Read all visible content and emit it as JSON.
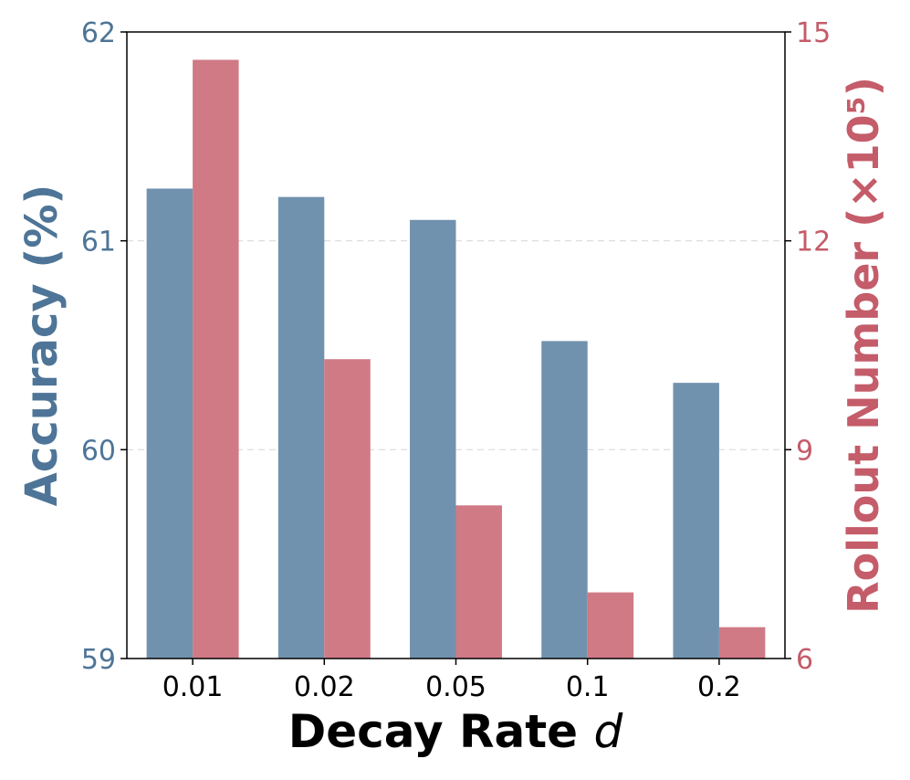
{
  "chart_data": {
    "type": "bar",
    "categories": [
      "0.01",
      "0.02",
      "0.05",
      "0.1",
      "0.2"
    ],
    "xlabel": "Decay Rate",
    "xlabel_var": "d",
    "ylabel_left": "Accuracy (%)",
    "ylabel_right": "Rollout Number (×10⁵)",
    "ylim_left": [
      59,
      62
    ],
    "yticks_left": [
      59,
      60,
      61,
      62
    ],
    "ylim_right": [
      6,
      15
    ],
    "yticks_right": [
      6,
      9,
      12,
      15
    ],
    "grid": "horizontal dashed",
    "series": [
      {
        "axis": "left",
        "values": [
          61.25,
          61.21,
          61.1,
          60.52,
          60.32
        ],
        "color": "#7092ae"
      },
      {
        "axis": "right",
        "values": [
          14.6,
          10.3,
          8.2,
          6.95,
          6.45
        ],
        "color": "#d07a85"
      }
    ],
    "colors": {
      "left_axis": "#4e7597",
      "right_axis": "#c45c69",
      "frame": "#000000",
      "grid": "#d9d9d9"
    }
  }
}
